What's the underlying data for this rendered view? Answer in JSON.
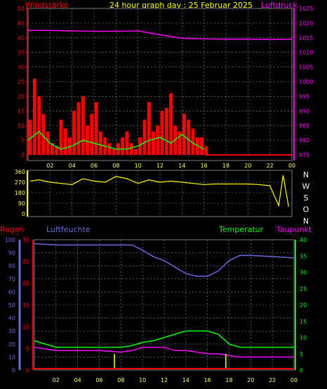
{
  "header": {
    "left_label": "Windstärke",
    "title": "24 hour graph day : 25 Februar 2025",
    "right_label": "Luftdruck"
  },
  "x_ticks": [
    "02",
    "04",
    "06",
    "08",
    "10",
    "12",
    "14",
    "16",
    "18",
    "20",
    "22",
    "00"
  ],
  "wind_axis": {
    "ticks": [
      "0",
      "5",
      "10",
      "15",
      "20",
      "25",
      "30",
      "35",
      "40",
      "45",
      "50"
    ]
  },
  "pressure_axis": {
    "ticks": [
      "975",
      "980",
      "985",
      "990",
      "995",
      "1000",
      "1005",
      "1010",
      "1015",
      "1020",
      "1025"
    ]
  },
  "direction_axis": {
    "deg_ticks": [
      "0",
      "90",
      "180",
      "270",
      "360"
    ],
    "compass": [
      "N",
      "W",
      "S",
      "O",
      "N"
    ]
  },
  "lower_labels": {
    "rain": "Regen",
    "humidity": "Luftfeuchte",
    "temperature": "Temperatur",
    "dewpoint": "Taupunkt"
  },
  "humidity_axis": {
    "ticks": [
      "0",
      "10",
      "20",
      "30",
      "40",
      "50",
      "60",
      "70",
      "80",
      "90",
      "100"
    ]
  },
  "rain_axis": {
    "ticks": [
      "0",
      "5",
      "10",
      "15",
      "20",
      "25",
      "30"
    ]
  },
  "temp_axis": {
    "ticks": [
      "0",
      "5",
      "10",
      "15",
      "20",
      "25",
      "30",
      "35",
      "40"
    ]
  },
  "colors": {
    "wind": "#ff0000",
    "gust": "#00ff00",
    "pressure": "#ff00ff",
    "direction": "#ffff00",
    "humidity": "#6a6adf",
    "temperature": "#00ff00",
    "dewpoint": "#ff00ff",
    "rain": "#ffff00",
    "header": "#ffff00",
    "grid": "#888888"
  },
  "chart_data": [
    {
      "type": "bar",
      "description_key": "wind",
      "series": [
        {
          "name": "Windstärke",
          "x": [
            0.2,
            0.6,
            1.0,
            1.4,
            1.8,
            2.2,
            2.6,
            3.0,
            3.4,
            3.8,
            4.2,
            4.6,
            5.0,
            5.4,
            5.8,
            6.2,
            6.6,
            7.0,
            7.4,
            7.8,
            8.2,
            8.6,
            9.0,
            9.4,
            9.8,
            10.2,
            10.6,
            11.0,
            11.4,
            11.8,
            12.2,
            12.6,
            13.0,
            13.4,
            13.8,
            14.2,
            14.6,
            15.0,
            15.4,
            15.8,
            16.2
          ],
          "values": [
            12,
            26,
            20,
            14,
            8,
            4,
            3,
            12,
            9,
            6,
            15,
            18,
            20,
            10,
            14,
            18,
            8,
            6,
            4,
            2,
            4,
            6,
            8,
            4,
            2,
            6,
            12,
            18,
            8,
            10,
            15,
            16,
            21,
            10,
            8,
            14,
            12,
            9,
            6,
            6,
            3
          ]
        },
        {
          "name": "Gust",
          "x": [
            0,
            1,
            2,
            3,
            4,
            5,
            6,
            7,
            8,
            9,
            10,
            11,
            12,
            13,
            14,
            15,
            16
          ],
          "values": [
            5,
            8,
            4,
            2,
            3,
            5,
            4,
            3,
            2,
            2,
            3,
            5,
            6,
            4,
            7,
            4,
            2
          ]
        }
      ],
      "pressure": {
        "name": "Luftdruck",
        "x": [
          0,
          2,
          4,
          6,
          8,
          10,
          12,
          14,
          16,
          18,
          20,
          22,
          24
        ],
        "values": [
          1017.5,
          1017.5,
          1017.3,
          1017.2,
          1017.2,
          1017.3,
          1016.0,
          1014.8,
          1014.6,
          1014.5,
          1014.5,
          1014.4,
          1014.4
        ]
      },
      "xlim": [
        0,
        24
      ],
      "ylim": [
        0,
        50
      ],
      "y2lim": [
        975,
        1025
      ]
    },
    {
      "type": "line",
      "description_key": "direction",
      "series": [
        {
          "name": "direction",
          "x": [
            0.2,
            1,
            2,
            3,
            4,
            5,
            6,
            7,
            8,
            9,
            10,
            11,
            12,
            13,
            14,
            15,
            16,
            17,
            18,
            19,
            20,
            21,
            22,
            22.8,
            23.2,
            23.7
          ],
          "values": [
            280,
            290,
            270,
            260,
            250,
            300,
            280,
            270,
            320,
            300,
            260,
            290,
            270,
            280,
            270,
            260,
            250,
            255,
            255,
            255,
            255,
            250,
            240,
            70,
            330,
            60
          ]
        }
      ],
      "xlim": [
        0,
        24
      ],
      "ylim": [
        0,
        360
      ]
    },
    {
      "type": "line",
      "description_key": "climate",
      "series": [
        {
          "name": "Luftfeuchte",
          "x": [
            0,
            2,
            4,
            6,
            8,
            9,
            10,
            11,
            12,
            13,
            14,
            15,
            16,
            17,
            18,
            19,
            20,
            22,
            24
          ],
          "values": [
            97,
            96,
            96,
            96,
            96,
            96,
            92,
            87,
            84,
            79,
            74,
            72,
            72,
            76,
            84,
            88,
            88,
            87,
            86
          ]
        },
        {
          "name": "Temperatur",
          "x": [
            0,
            2,
            4,
            6,
            8,
            9,
            10,
            11,
            12,
            13,
            14,
            15,
            16,
            17,
            18,
            19,
            20,
            22,
            24
          ],
          "values": [
            9,
            7,
            7,
            7,
            7,
            7.5,
            8.5,
            9,
            10,
            11,
            12,
            12,
            12,
            11,
            8,
            7,
            7,
            7,
            7
          ]
        },
        {
          "name": "Taupunkt",
          "x": [
            0,
            2,
            4,
            6,
            8,
            9,
            10,
            11,
            12,
            13,
            14,
            15,
            16,
            17,
            18,
            19,
            20,
            22,
            24
          ],
          "values": [
            7,
            6,
            6,
            6,
            5.5,
            6,
            7,
            7,
            7,
            6,
            6,
            5.5,
            5,
            5,
            4.5,
            4,
            4,
            4,
            4
          ]
        },
        {
          "name": "Regen",
          "x": [
            7.4,
            17.7
          ],
          "values": [
            0.6,
            0.6
          ]
        }
      ],
      "xlim": [
        0,
        24
      ],
      "humidity_lim": [
        0,
        100
      ],
      "temp_lim": [
        0,
        40
      ],
      "rain_lim": [
        0,
        30
      ]
    }
  ]
}
